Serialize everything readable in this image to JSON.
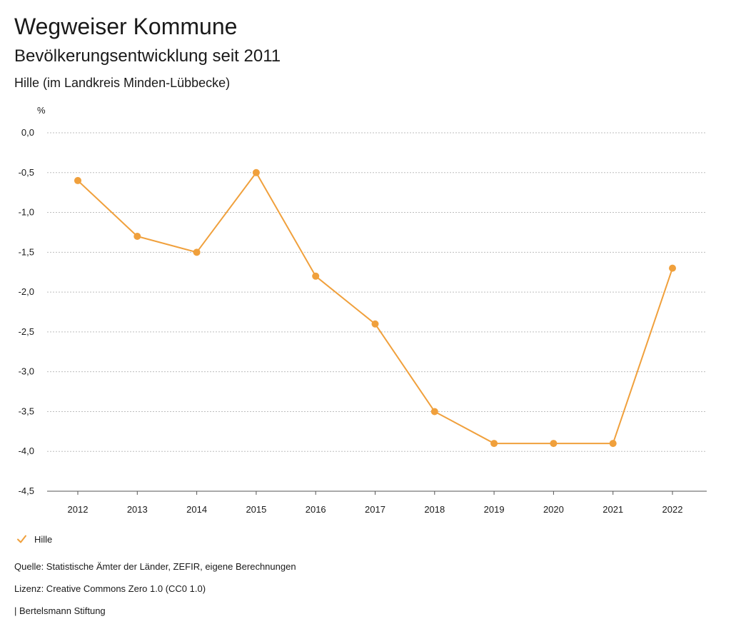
{
  "header": {
    "title": "Wegweiser Kommune",
    "subtitle": "Bevölkerungsentwicklung seit 2011",
    "region": "Hille (im Landkreis Minden-Lübbecke)"
  },
  "chart_data": {
    "type": "line",
    "ylabel": "%",
    "xlabel": "",
    "x": [
      "2012",
      "2013",
      "2014",
      "2015",
      "2016",
      "2017",
      "2018",
      "2019",
      "2020",
      "2021",
      "2022"
    ],
    "series": [
      {
        "name": "Hille",
        "values": [
          -0.6,
          -1.3,
          -1.5,
          -0.5,
          -1.8,
          -2.4,
          -3.5,
          -3.9,
          -3.9,
          -3.9,
          -1.7
        ]
      }
    ],
    "yticks": [
      "0,0",
      "-0,5",
      "-1,0",
      "-1,5",
      "-2,0",
      "-2,5",
      "-3,0",
      "-3,5",
      "-4,0",
      "-4,5"
    ],
    "ylim": [
      -4.5,
      0.0
    ],
    "grid": true,
    "legend_position": "bottom-left",
    "colors": {
      "series": "#f0a03c",
      "grid": "#bdbdbd",
      "axis": "#555555"
    }
  },
  "legend": {
    "hille_label": "Hille",
    "icon": "checkmark-icon"
  },
  "footer": {
    "source": "Quelle: Statistische Ämter der Länder, ZEFIR, eigene Berechnungen",
    "license": "Lizenz: Creative Commons Zero 1.0 (CC0 1.0)",
    "publisher": "| Bertelsmann Stiftung"
  }
}
